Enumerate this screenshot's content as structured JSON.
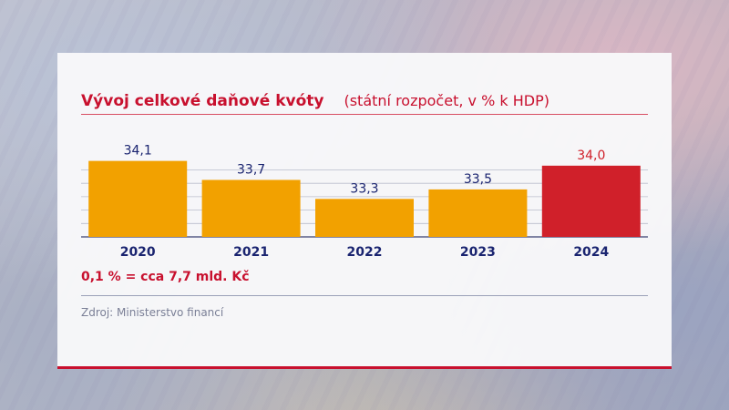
{
  "chart_data": {
    "type": "bar",
    "title": "Vývoj celkové daňové kvóty",
    "subtitle": "(státní rozpočet, v % k HDP)",
    "categories": [
      "2020",
      "2021",
      "2022",
      "2023",
      "2024"
    ],
    "values": [
      34.1,
      33.7,
      33.3,
      33.5,
      34.0
    ],
    "value_labels": [
      "34,1",
      "33,7",
      "33,3",
      "33,5",
      "34,0"
    ],
    "highlight_category": "2024",
    "colors": {
      "bar": "#f2a100",
      "highlight": "#d0202a",
      "value_text": "#1a2470",
      "highlight_text": "#d0202a",
      "axis_text": "#1a2470"
    },
    "grid": true,
    "legend": "none"
  },
  "note": "0,1 % = cca 7,7 mld. Kč",
  "source": "Zdroj: Ministerstvo financí"
}
